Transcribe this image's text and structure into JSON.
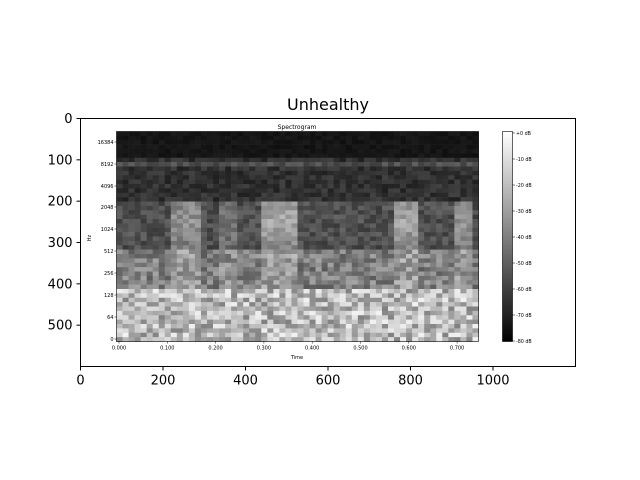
{
  "chart_data": {
    "type": "heatmap",
    "title": "Unhealthy",
    "xlabel": "",
    "ylabel": "",
    "xlim": [
      0,
      1200
    ],
    "ylim": [
      600,
      0
    ],
    "x_ticks": [
      0,
      200,
      400,
      600,
      800,
      1000
    ],
    "y_ticks": [
      0,
      100,
      200,
      300,
      400,
      500
    ],
    "grid": false,
    "embedded_image": {
      "title": "Spectrogram",
      "xlabel": "Time",
      "ylabel": "Hz",
      "x_ticks": [
        "0.000",
        "0.100",
        "0.200",
        "0.300",
        "0.400",
        "0.500",
        "0.600",
        "0.700"
      ],
      "y_ticks": [
        "0",
        "64",
        "128",
        "256",
        "512",
        "1024",
        "2048",
        "4096",
        "8192",
        "16384"
      ],
      "colorbar_ticks": [
        "+0 dB",
        "-10 dB",
        "-20 dB",
        "-30 dB",
        "-40 dB",
        "-50 dB",
        "-60 dB",
        "-70 dB",
        "-80 dB"
      ],
      "colormap": "gray",
      "bright_time_regions": [
        "0.100-0.200",
        "0.200-0.250",
        "0.300-0.350",
        "0.580-0.630",
        "0.680-0.720"
      ]
    }
  }
}
